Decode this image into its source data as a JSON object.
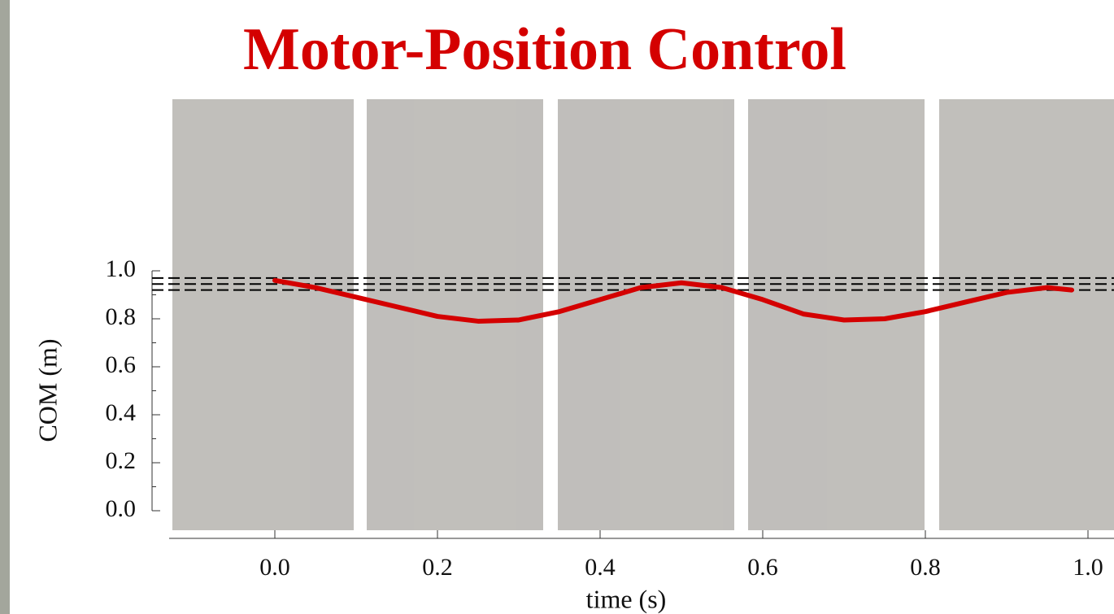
{
  "chart_data": {
    "type": "line",
    "title": "Motor-Position Control",
    "x_label": "time (s)",
    "y_label": "COM (m)",
    "x": [
      0,
      0.05,
      0.1,
      0.15,
      0.2,
      0.25,
      0.3,
      0.35,
      0.4,
      0.45,
      0.5,
      0.55,
      0.6,
      0.65,
      0.7,
      0.75,
      0.8,
      0.85,
      0.9,
      0.95,
      0.98
    ],
    "series": [
      {
        "color": "#d40000",
        "values": [
          0.96,
          0.93,
          0.89,
          0.85,
          0.81,
          0.79,
          0.795,
          0.83,
          0.88,
          0.93,
          0.95,
          0.93,
          0.88,
          0.82,
          0.795,
          0.8,
          0.83,
          0.87,
          0.91,
          0.93,
          0.92
        ]
      }
    ],
    "reference_lines": [
      0.97,
      0.945,
      0.92
    ],
    "xlim": [
      -0.13,
      1.032
    ],
    "ylim": [
      0,
      1.0
    ],
    "xticks": [
      {
        "value": 0,
        "label": "0.0"
      },
      0.2,
      0.4,
      0.6,
      0.8,
      {
        "value": 1.0,
        "label": "1.0"
      }
    ],
    "yticks": [
      {
        "value": 0,
        "label": "0.0"
      },
      0.2,
      0.4,
      0.6,
      0.8,
      {
        "value": 1.0,
        "label": "1.0"
      }
    ],
    "y_minor_ticks": [
      0.1,
      0.3,
      0.5,
      0.7,
      0.9
    ]
  }
}
